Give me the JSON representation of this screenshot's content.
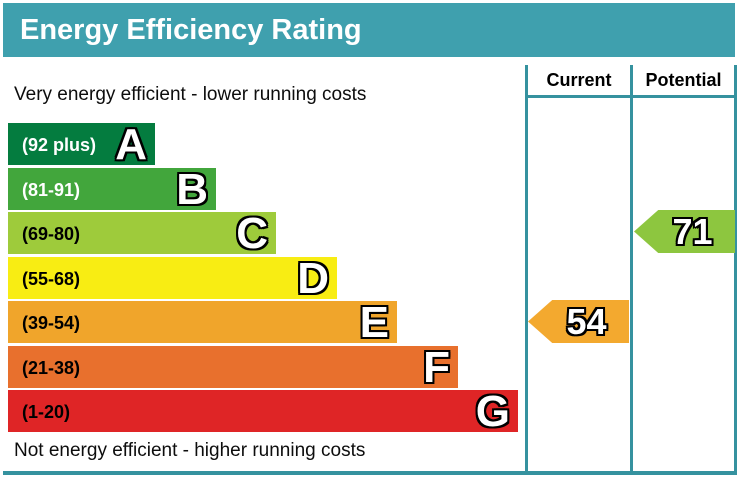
{
  "title": "Energy Efficiency Rating",
  "top_note": "Very energy efficient - lower running costs",
  "bottom_note": "Not energy efficient - higher running costs",
  "table": {
    "current_header": "Current",
    "potential_header": "Potential"
  },
  "colors": {
    "title_bar": "#3fa0ae",
    "grid_line": "#35929f",
    "text": "#0d0d0d"
  },
  "chart_data": {
    "type": "bar",
    "title": "Energy Efficiency Rating",
    "orientation": "horizontal",
    "value_range": [
      1,
      100
    ],
    "bands": [
      {
        "letter": "A",
        "range": "(92 plus)",
        "min": 92,
        "max": 100,
        "color": "#047c3f",
        "range_text_color": "#ffffff"
      },
      {
        "letter": "B",
        "range": "(81-91)",
        "min": 81,
        "max": 91,
        "color": "#42a63c",
        "range_text_color": "#ffffff"
      },
      {
        "letter": "C",
        "range": "(69-80)",
        "min": 69,
        "max": 80,
        "color": "#9ecb3b",
        "range_text_color": "#000000"
      },
      {
        "letter": "D",
        "range": "(55-68)",
        "min": 55,
        "max": 68,
        "color": "#f8ed13",
        "range_text_color": "#000000"
      },
      {
        "letter": "E",
        "range": "(39-54)",
        "min": 39,
        "max": 54,
        "color": "#f0a52b",
        "range_text_color": "#000000"
      },
      {
        "letter": "F",
        "range": "(21-38)",
        "min": 21,
        "max": 38,
        "color": "#e8702d",
        "range_text_color": "#000000"
      },
      {
        "letter": "G",
        "range": "(1-20)",
        "min": 1,
        "max": 20,
        "color": "#df2526",
        "range_text_color": "#000000"
      }
    ],
    "current": {
      "value": 54,
      "band": "E",
      "band_index": 4,
      "arrow_color": "#f3a92f"
    },
    "potential": {
      "value": 71,
      "band": "C",
      "band_index": 2,
      "arrow_color": "#8dc63f"
    }
  }
}
